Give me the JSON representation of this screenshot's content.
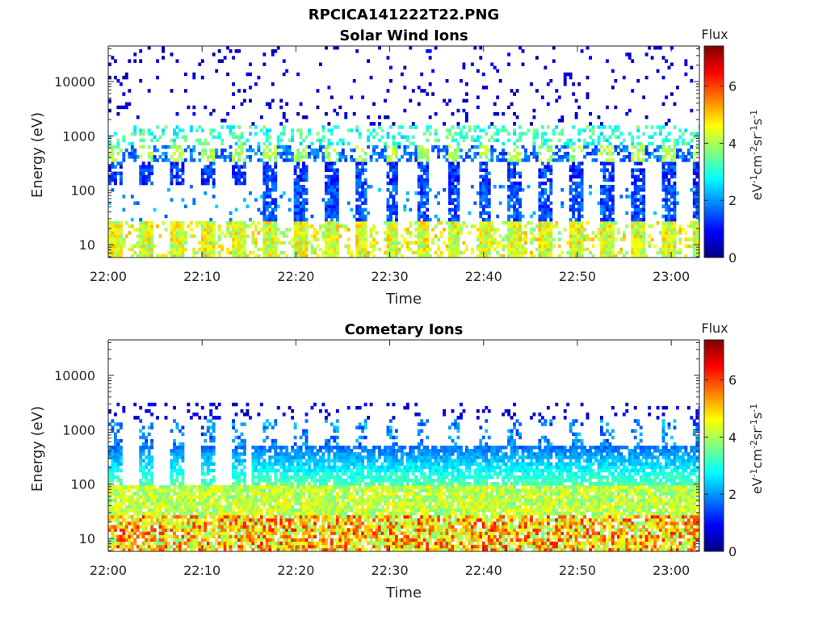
{
  "figure": {
    "filename_title": "RPCICA141222T22.PNG"
  },
  "palette": {
    "colormap": "jet",
    "background": "#ffffff",
    "axis": "#262626"
  },
  "chart_data": [
    {
      "type": "heatmap",
      "title": "Solar Wind Ions",
      "xlabel": "Time",
      "ylabel": "Energy (eV)",
      "x_ticks": [
        "22:00",
        "22:10",
        "22:20",
        "22:30",
        "22:40",
        "22:50",
        "23:00"
      ],
      "y_scale": "log",
      "y_ticks": [
        "10",
        "100",
        "1000",
        "10000"
      ],
      "y_range": [
        5.8,
        45000
      ],
      "x_range_minutes": [
        0,
        63
      ],
      "grid": false,
      "colorbar": {
        "title": "Flux",
        "label": "eV⁻¹cm⁻²sr⁻¹s⁻¹",
        "label_parts": [
          {
            "t": "eV"
          },
          {
            "t": "-1",
            "sup": true
          },
          {
            "t": "cm"
          },
          {
            "t": "-2",
            "sup": true
          },
          {
            "t": "sr"
          },
          {
            "t": "-1",
            "sup": true
          },
          {
            "t": "s"
          },
          {
            "t": "-1",
            "sup": true
          }
        ],
        "ticks": [
          "0",
          "2",
          "4",
          "6"
        ],
        "range": [
          0,
          7.4
        ]
      },
      "profile": "sw"
    },
    {
      "type": "heatmap",
      "title": "Cometary Ions",
      "xlabel": "Time",
      "ylabel": "Energy (eV)",
      "x_ticks": [
        "22:00",
        "22:10",
        "22:20",
        "22:30",
        "22:40",
        "22:50",
        "23:00"
      ],
      "y_scale": "log",
      "y_ticks": [
        "10",
        "100",
        "1000",
        "10000"
      ],
      "y_range": [
        5.8,
        45000
      ],
      "x_range_minutes": [
        0,
        63
      ],
      "grid": false,
      "colorbar": {
        "title": "Flux",
        "label": "eV⁻¹cm⁻²sr⁻¹s⁻¹",
        "label_parts": [
          {
            "t": "eV"
          },
          {
            "t": "-1",
            "sup": true
          },
          {
            "t": "cm"
          },
          {
            "t": "-2",
            "sup": true
          },
          {
            "t": "sr"
          },
          {
            "t": "-1",
            "sup": true
          },
          {
            "t": "s"
          },
          {
            "t": "-1",
            "sup": true
          }
        ],
        "ticks": [
          "0",
          "2",
          "4",
          "6"
        ],
        "range": [
          0,
          7.4
        ]
      },
      "profile": "com"
    }
  ]
}
